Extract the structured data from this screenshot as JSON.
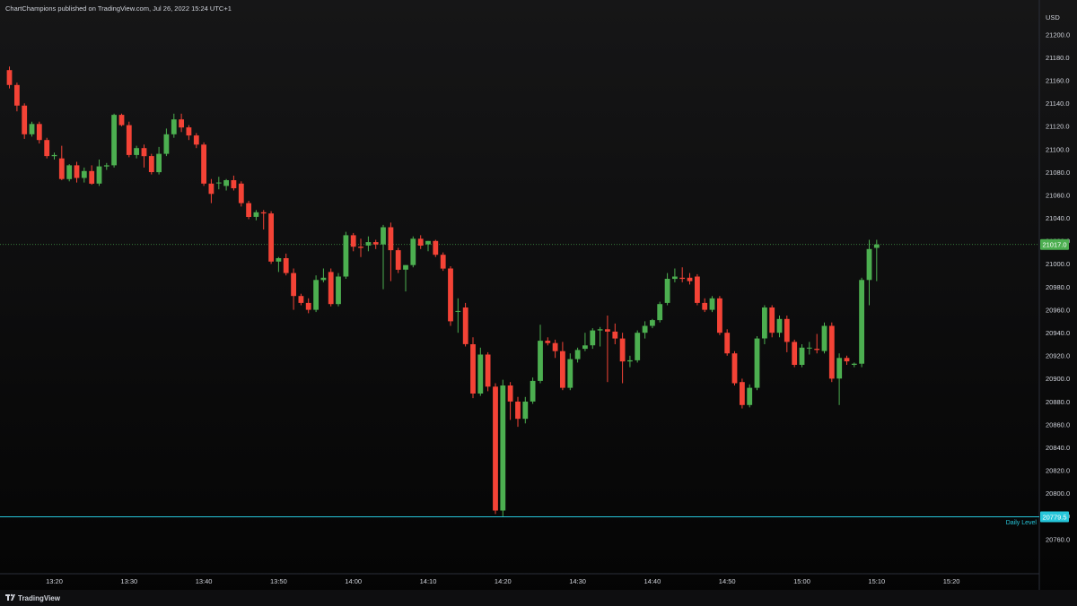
{
  "header": {
    "published_text": "ChartChampions published on TradingView.com, Jul 26, 2022 15:24 UTC+1"
  },
  "footer": {
    "brand_text": "TradingView"
  },
  "chart_data": {
    "type": "candlestick",
    "currency": "USD",
    "ylim": [
      20745,
      21220
    ],
    "y_ticks": [
      21200,
      21180,
      21160,
      21140,
      21120,
      21100,
      21080,
      21060,
      21040,
      21020,
      21000,
      20980,
      20960,
      20940,
      20920,
      20900,
      20880,
      20860,
      20840,
      20820,
      20800,
      20780,
      20760
    ],
    "y_tick_labels": [
      "21200.0",
      "21180.0",
      "21160.0",
      "21140.0",
      "21120.0",
      "21100.0",
      "21080.0",
      "21060.0",
      "21040.0",
      "21020.0",
      "21000.0",
      "20980.0",
      "20960.0",
      "20940.0",
      "20920.0",
      "20900.0",
      "20880.0",
      "20860.0",
      "20840.0",
      "20820.0",
      "20800.0",
      "20780.0",
      "20760.0"
    ],
    "x_tick_labels": [
      "13:20",
      "13:30",
      "13:40",
      "13:50",
      "14:00",
      "14:10",
      "14:20",
      "14:30",
      "14:40",
      "14:50",
      "15:00",
      "15:10",
      "15:20"
    ],
    "current_price": {
      "value": 21017.0,
      "label": "21017.0",
      "color": "#4caf50"
    },
    "daily_level": {
      "value": 20779.5,
      "label": "20779.5",
      "name": "Daily Level",
      "color": "#26c6da"
    },
    "colors": {
      "up": "#4caf50",
      "down": "#f44336",
      "background_top": "#161617",
      "background_bottom": "#040404"
    },
    "candles": [
      {
        "t": "13:14",
        "o": 21169,
        "h": 21172,
        "l": 21153,
        "c": 21156
      },
      {
        "t": "13:15",
        "o": 21156,
        "h": 21158,
        "l": 21133,
        "c": 21138
      },
      {
        "t": "13:16",
        "o": 21138,
        "h": 21140,
        "l": 21109,
        "c": 21113
      },
      {
        "t": "13:17",
        "o": 21113,
        "h": 21124,
        "l": 21111,
        "c": 21122
      },
      {
        "t": "13:18",
        "o": 21122,
        "h": 21124,
        "l": 21105,
        "c": 21108
      },
      {
        "t": "13:19",
        "o": 21108,
        "h": 21110,
        "l": 21092,
        "c": 21094
      },
      {
        "t": "13:20",
        "o": 21094,
        "h": 21097,
        "l": 21091,
        "c": 21095
      },
      {
        "t": "13:21",
        "o": 21092,
        "h": 21103,
        "l": 21073,
        "c": 21074
      },
      {
        "t": "13:22",
        "o": 21074,
        "h": 21087,
        "l": 21072,
        "c": 21086
      },
      {
        "t": "13:23",
        "o": 21086,
        "h": 21089,
        "l": 21071,
        "c": 21075
      },
      {
        "t": "13:24",
        "o": 21075,
        "h": 21084,
        "l": 21071,
        "c": 21081
      },
      {
        "t": "13:25",
        "o": 21081,
        "h": 21086,
        "l": 21069,
        "c": 21070
      },
      {
        "t": "13:26",
        "o": 21070,
        "h": 21091,
        "l": 21068,
        "c": 21085
      },
      {
        "t": "13:27",
        "o": 21085,
        "h": 21088,
        "l": 21082,
        "c": 21086
      },
      {
        "t": "13:28",
        "o": 21086,
        "h": 21131,
        "l": 21084,
        "c": 21130
      },
      {
        "t": "13:29",
        "o": 21130,
        "h": 21131,
        "l": 21120,
        "c": 21121
      },
      {
        "t": "13:30",
        "o": 21121,
        "h": 21124,
        "l": 21093,
        "c": 21095
      },
      {
        "t": "13:31",
        "o": 21095,
        "h": 21103,
        "l": 21092,
        "c": 21101
      },
      {
        "t": "13:32",
        "o": 21101,
        "h": 21104,
        "l": 21084,
        "c": 21094
      },
      {
        "t": "13:33",
        "o": 21094,
        "h": 21096,
        "l": 21078,
        "c": 21080
      },
      {
        "t": "13:34",
        "o": 21080,
        "h": 21102,
        "l": 21078,
        "c": 21096
      },
      {
        "t": "13:35",
        "o": 21096,
        "h": 21118,
        "l": 21094,
        "c": 21113
      },
      {
        "t": "13:36",
        "o": 21113,
        "h": 21131,
        "l": 21110,
        "c": 21126
      },
      {
        "t": "13:37",
        "o": 21126,
        "h": 21131,
        "l": 21115,
        "c": 21119
      },
      {
        "t": "13:38",
        "o": 21119,
        "h": 21121,
        "l": 21108,
        "c": 21112
      },
      {
        "t": "13:39",
        "o": 21112,
        "h": 21114,
        "l": 21101,
        "c": 21104
      },
      {
        "t": "13:40",
        "o": 21104,
        "h": 21106,
        "l": 21068,
        "c": 21070
      },
      {
        "t": "13:41",
        "o": 21070,
        "h": 21074,
        "l": 21053,
        "c": 21061
      },
      {
        "t": "13:42",
        "o": 21071,
        "h": 21076,
        "l": 21065,
        "c": 21071
      },
      {
        "t": "13:43",
        "o": 21068,
        "h": 21074,
        "l": 21064,
        "c": 21073
      },
      {
        "t": "13:44",
        "o": 21073,
        "h": 21077,
        "l": 21064,
        "c": 21066
      },
      {
        "t": "13:45",
        "o": 21070,
        "h": 21072,
        "l": 21050,
        "c": 21053
      },
      {
        "t": "13:46",
        "o": 21053,
        "h": 21055,
        "l": 21039,
        "c": 21041
      },
      {
        "t": "13:47",
        "o": 21041,
        "h": 21047,
        "l": 21038,
        "c": 21045
      },
      {
        "t": "13:48",
        "o": 21045,
        "h": 21047,
        "l": 21030,
        "c": 21044
      },
      {
        "t": "13:49",
        "o": 21044,
        "h": 21046,
        "l": 21000,
        "c": 21002
      },
      {
        "t": "13:50",
        "o": 21002,
        "h": 21006,
        "l": 20993,
        "c": 21005
      },
      {
        "t": "13:51",
        "o": 21005,
        "h": 21009,
        "l": 20990,
        "c": 20992
      },
      {
        "t": "13:52",
        "o": 20992,
        "h": 20996,
        "l": 20960,
        "c": 20972
      },
      {
        "t": "13:53",
        "o": 20972,
        "h": 20974,
        "l": 20964,
        "c": 20966
      },
      {
        "t": "13:54",
        "o": 20966,
        "h": 20970,
        "l": 20957,
        "c": 20960
      },
      {
        "t": "13:55",
        "o": 20960,
        "h": 20990,
        "l": 20958,
        "c": 20986
      },
      {
        "t": "13:56",
        "o": 20986,
        "h": 20996,
        "l": 20984,
        "c": 20988
      },
      {
        "t": "13:57",
        "o": 20993,
        "h": 20996,
        "l": 20963,
        "c": 20965
      },
      {
        "t": "13:58",
        "o": 20965,
        "h": 20992,
        "l": 20963,
        "c": 20989
      },
      {
        "t": "13:59",
        "o": 20989,
        "h": 21028,
        "l": 20987,
        "c": 21025
      },
      {
        "t": "14:00",
        "o": 21025,
        "h": 21027,
        "l": 21011,
        "c": 21015
      },
      {
        "t": "14:01",
        "o": 21015,
        "h": 21022,
        "l": 21006,
        "c": 21014
      },
      {
        "t": "14:02",
        "o": 21016,
        "h": 21024,
        "l": 21011,
        "c": 21019
      },
      {
        "t": "14:03",
        "o": 21019,
        "h": 21021,
        "l": 21013,
        "c": 21017
      },
      {
        "t": "14:04",
        "o": 21017,
        "h": 21034,
        "l": 20978,
        "c": 21032
      },
      {
        "t": "14:05",
        "o": 21032,
        "h": 21036,
        "l": 20985,
        "c": 21012
      },
      {
        "t": "14:06",
        "o": 21012,
        "h": 21014,
        "l": 20992,
        "c": 20995
      },
      {
        "t": "14:07",
        "o": 20995,
        "h": 20999,
        "l": 20976,
        "c": 20999
      },
      {
        "t": "14:08",
        "o": 20999,
        "h": 21024,
        "l": 20997,
        "c": 21022
      },
      {
        "t": "14:09",
        "o": 21022,
        "h": 21025,
        "l": 21013,
        "c": 21016
      },
      {
        "t": "14:10",
        "o": 21017,
        "h": 21020,
        "l": 21011,
        "c": 21020
      },
      {
        "t": "14:11",
        "o": 21020,
        "h": 21021,
        "l": 21006,
        "c": 21008
      },
      {
        "t": "14:12",
        "o": 21008,
        "h": 21010,
        "l": 20994,
        "c": 20996
      },
      {
        "t": "14:13",
        "o": 20996,
        "h": 20998,
        "l": 20946,
        "c": 20950
      },
      {
        "t": "14:14",
        "o": 20959,
        "h": 20970,
        "l": 20940,
        "c": 20959
      },
      {
        "t": "14:15",
        "o": 20962,
        "h": 20966,
        "l": 20928,
        "c": 20930
      },
      {
        "t": "14:16",
        "o": 20930,
        "h": 20936,
        "l": 20883,
        "c": 20887
      },
      {
        "t": "14:17",
        "o": 20887,
        "h": 20927,
        "l": 20885,
        "c": 20921
      },
      {
        "t": "14:18",
        "o": 20921,
        "h": 20923,
        "l": 20889,
        "c": 20893
      },
      {
        "t": "14:19",
        "o": 20893,
        "h": 20896,
        "l": 20782,
        "c": 20785
      },
      {
        "t": "14:20",
        "o": 20785,
        "h": 20899,
        "l": 20780,
        "c": 20894
      },
      {
        "t": "14:21",
        "o": 20894,
        "h": 20897,
        "l": 20864,
        "c": 20880
      },
      {
        "t": "14:22",
        "o": 20880,
        "h": 20884,
        "l": 20858,
        "c": 20865
      },
      {
        "t": "14:23",
        "o": 20865,
        "h": 20884,
        "l": 20861,
        "c": 20880
      },
      {
        "t": "14:24",
        "o": 20880,
        "h": 20901,
        "l": 20878,
        "c": 20898
      },
      {
        "t": "14:25",
        "o": 20898,
        "h": 20947,
        "l": 20896,
        "c": 20933
      },
      {
        "t": "14:26",
        "o": 20933,
        "h": 20936,
        "l": 20929,
        "c": 20931
      },
      {
        "t": "14:27",
        "o": 20931,
        "h": 20934,
        "l": 20918,
        "c": 20924
      },
      {
        "t": "14:28",
        "o": 20924,
        "h": 20932,
        "l": 20890,
        "c": 20892
      },
      {
        "t": "14:29",
        "o": 20892,
        "h": 20922,
        "l": 20890,
        "c": 20917
      },
      {
        "t": "14:30",
        "o": 20917,
        "h": 20927,
        "l": 20914,
        "c": 20925
      },
      {
        "t": "14:31",
        "o": 20926,
        "h": 20940,
        "l": 20924,
        "c": 20929
      },
      {
        "t": "14:32",
        "o": 20929,
        "h": 20944,
        "l": 20926,
        "c": 20942
      },
      {
        "t": "14:33",
        "o": 20942,
        "h": 20945,
        "l": 20928,
        "c": 20943
      },
      {
        "t": "14:34",
        "o": 20943,
        "h": 20955,
        "l": 20897,
        "c": 20941
      },
      {
        "t": "14:35",
        "o": 20941,
        "h": 20948,
        "l": 20930,
        "c": 20935
      },
      {
        "t": "14:36",
        "o": 20935,
        "h": 20940,
        "l": 20896,
        "c": 20915
      },
      {
        "t": "14:37",
        "o": 20915,
        "h": 20920,
        "l": 20910,
        "c": 20916
      },
      {
        "t": "14:38",
        "o": 20916,
        "h": 20942,
        "l": 20914,
        "c": 20940
      },
      {
        "t": "14:39",
        "o": 20940,
        "h": 20950,
        "l": 20935,
        "c": 20946
      },
      {
        "t": "14:40",
        "o": 20946,
        "h": 20952,
        "l": 20944,
        "c": 20951
      },
      {
        "t": "14:41",
        "o": 20951,
        "h": 20967,
        "l": 20949,
        "c": 20965
      },
      {
        "t": "14:42",
        "o": 20966,
        "h": 20992,
        "l": 20964,
        "c": 20987
      },
      {
        "t": "14:43",
        "o": 20987,
        "h": 20996,
        "l": 20984,
        "c": 20989
      },
      {
        "t": "14:44",
        "o": 20988,
        "h": 20997,
        "l": 20984,
        "c": 20987
      },
      {
        "t": "14:45",
        "o": 20988,
        "h": 20992,
        "l": 20982,
        "c": 20985
      },
      {
        "t": "14:46",
        "o": 20989,
        "h": 20991,
        "l": 20964,
        "c": 20966
      },
      {
        "t": "14:47",
        "o": 20966,
        "h": 20970,
        "l": 20958,
        "c": 20960
      },
      {
        "t": "14:48",
        "o": 20960,
        "h": 20972,
        "l": 20958,
        "c": 20970
      },
      {
        "t": "14:49",
        "o": 20970,
        "h": 20972,
        "l": 20938,
        "c": 20940
      },
      {
        "t": "14:50",
        "o": 20940,
        "h": 20943,
        "l": 20920,
        "c": 20922
      },
      {
        "t": "14:51",
        "o": 20922,
        "h": 20924,
        "l": 20894,
        "c": 20896
      },
      {
        "t": "14:52",
        "o": 20897,
        "h": 20900,
        "l": 20874,
        "c": 20877
      },
      {
        "t": "14:53",
        "o": 20877,
        "h": 20895,
        "l": 20875,
        "c": 20892
      },
      {
        "t": "14:54",
        "o": 20892,
        "h": 20937,
        "l": 20890,
        "c": 20935
      },
      {
        "t": "14:55",
        "o": 20935,
        "h": 20964,
        "l": 20930,
        "c": 20962
      },
      {
        "t": "14:56",
        "o": 20962,
        "h": 20964,
        "l": 20936,
        "c": 20940
      },
      {
        "t": "14:57",
        "o": 20940,
        "h": 20955,
        "l": 20936,
        "c": 20952
      },
      {
        "t": "14:58",
        "o": 20952,
        "h": 20955,
        "l": 20923,
        "c": 20932
      },
      {
        "t": "14:59",
        "o": 20932,
        "h": 20934,
        "l": 20910,
        "c": 20912
      },
      {
        "t": "15:00",
        "o": 20912,
        "h": 20930,
        "l": 20910,
        "c": 20927
      },
      {
        "t": "15:01",
        "o": 20927,
        "h": 20932,
        "l": 20921,
        "c": 20927
      },
      {
        "t": "15:02",
        "o": 20926,
        "h": 20939,
        "l": 20922,
        "c": 20925
      },
      {
        "t": "15:03",
        "o": 20924,
        "h": 20949,
        "l": 20922,
        "c": 20946
      },
      {
        "t": "15:04",
        "o": 20946,
        "h": 20949,
        "l": 20897,
        "c": 20900
      },
      {
        "t": "15:05",
        "o": 20900,
        "h": 20922,
        "l": 20877,
        "c": 20918
      },
      {
        "t": "15:06",
        "o": 20918,
        "h": 20920,
        "l": 20912,
        "c": 20915
      },
      {
        "t": "15:07",
        "o": 20912,
        "h": 20914,
        "l": 20910,
        "c": 20913
      },
      {
        "t": "15:08",
        "o": 20913,
        "h": 20988,
        "l": 20910,
        "c": 20986
      },
      {
        "t": "15:09",
        "o": 20986,
        "h": 21021,
        "l": 20964,
        "c": 21013
      },
      {
        "t": "15:10",
        "o": 21014,
        "h": 21021,
        "l": 20985,
        "c": 21017
      }
    ]
  }
}
